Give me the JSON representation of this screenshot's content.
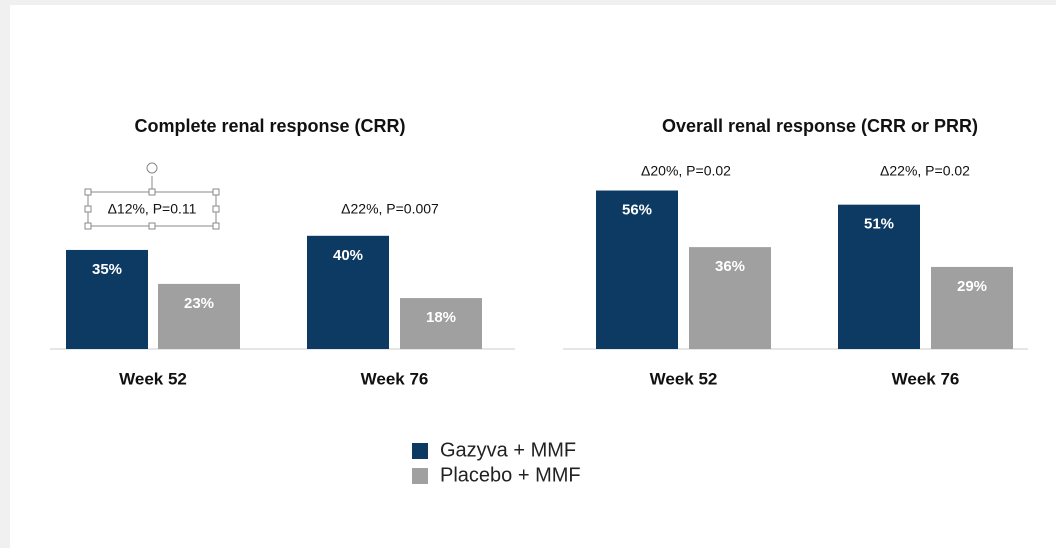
{
  "chart_data": [
    {
      "type": "bar",
      "title": "Complete renal response (CRR)",
      "categories": [
        "Week 52",
        "Week 76"
      ],
      "annotations": [
        "Δ12%, P=0.11",
        "Δ22%, P=0.007"
      ],
      "series": [
        {
          "name": "Gazyva + MMF",
          "color": "#0c3a63",
          "values": [
            35,
            40
          ],
          "value_labels": [
            "35%",
            "40%"
          ]
        },
        {
          "name": "Placebo + MMF",
          "color": "#a0a0a0",
          "values": [
            23,
            18
          ],
          "value_labels": [
            "23%",
            "18%"
          ]
        }
      ]
    },
    {
      "type": "bar",
      "title": "Overall renal response (CRR or PRR)",
      "categories": [
        "Week 52",
        "Week 76"
      ],
      "annotations": [
        "Δ20%, P=0.02",
        "Δ22%, P=0.02"
      ],
      "series": [
        {
          "color": "#0c3a63",
          "values": [
            56,
            51
          ],
          "value_labels": [
            "56%",
            "51%"
          ]
        },
        {
          "color": "#a0a0a0",
          "values": [
            36,
            29
          ],
          "value_labels": [
            "36%",
            "29%"
          ]
        }
      ]
    }
  ]
}
